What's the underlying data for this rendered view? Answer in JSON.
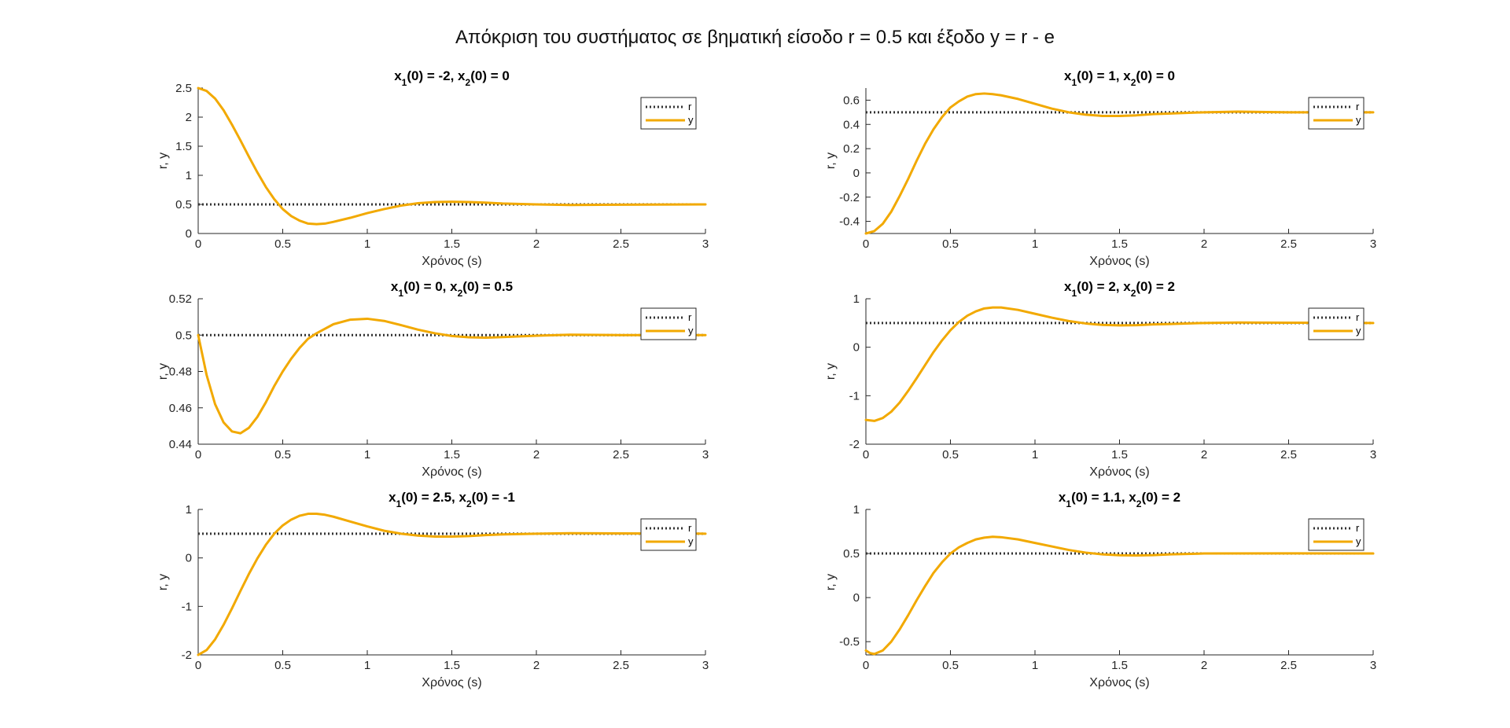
{
  "figure": {
    "title": "Απόκριση του συστήματος σε βηματική είσοδο r = 0.5 και έξοδο y = r - e"
  },
  "colors": {
    "r": "#333333",
    "y": "#F2A900",
    "axis": "#262626"
  },
  "chart_data": [
    {
      "type": "line",
      "title": "x1(0) = -2, x2(0) = 0",
      "title_parts": [
        [
          "x",
          "1",
          "(0) = -2, x"
        ],
        [
          "2",
          "(0) = 0"
        ]
      ],
      "xlabel": "Χρόνος (s)",
      "ylabel": "r, y",
      "xlim": [
        0,
        3
      ],
      "ylim": [
        0,
        2.5
      ],
      "xticks": [
        0,
        0.5,
        1,
        1.5,
        2,
        2.5,
        3
      ],
      "xtick_labels": [
        "0",
        "0.5",
        "1",
        "1.5",
        "2",
        "2.5",
        "3"
      ],
      "yticks": [
        0,
        0.5,
        1,
        1.5,
        2,
        2.5
      ],
      "ytick_labels": [
        "0",
        "0.5",
        "1",
        "1.5",
        "2",
        "2.5"
      ],
      "legend": [
        "r",
        "y"
      ],
      "legend_position": "top-right",
      "series": [
        {
          "name": "r",
          "x": [
            0,
            3
          ],
          "y": [
            0.5,
            0.5
          ],
          "style": "dotted"
        },
        {
          "name": "y",
          "style": "solid",
          "x": [
            0,
            0.05,
            0.1,
            0.15,
            0.2,
            0.25,
            0.3,
            0.35,
            0.4,
            0.45,
            0.5,
            0.55,
            0.6,
            0.65,
            0.7,
            0.75,
            0.8,
            0.9,
            1.0,
            1.1,
            1.2,
            1.3,
            1.4,
            1.5,
            1.6,
            1.7,
            1.8,
            2.0,
            2.2,
            2.5,
            3.0
          ],
          "y": [
            2.5,
            2.45,
            2.32,
            2.12,
            1.87,
            1.6,
            1.32,
            1.05,
            0.8,
            0.59,
            0.42,
            0.3,
            0.22,
            0.17,
            0.16,
            0.17,
            0.2,
            0.27,
            0.35,
            0.42,
            0.48,
            0.52,
            0.54,
            0.545,
            0.54,
            0.53,
            0.515,
            0.5,
            0.49,
            0.495,
            0.5
          ]
        }
      ]
    },
    {
      "type": "line",
      "title": "x1(0) = 1, x2(0) = 0",
      "title_parts": [
        [
          "x",
          "1",
          "(0) = 1, x"
        ],
        [
          "2",
          "(0) = 0"
        ]
      ],
      "xlabel": "Χρόνος (s)",
      "ylabel": "r, y",
      "xlim": [
        0,
        3
      ],
      "ylim": [
        -0.5,
        0.7
      ],
      "xticks": [
        0,
        0.5,
        1,
        1.5,
        2,
        2.5,
        3
      ],
      "xtick_labels": [
        "0",
        "0.5",
        "1",
        "1.5",
        "2",
        "2.5",
        "3"
      ],
      "yticks": [
        -0.4,
        -0.2,
        0,
        0.2,
        0.4,
        0.6
      ],
      "ytick_labels": [
        "-0.4",
        "-0.2",
        "0",
        "0.2",
        "0.4",
        "0.6"
      ],
      "legend": [
        "r",
        "y"
      ],
      "legend_position": "top-right",
      "series": [
        {
          "name": "r",
          "x": [
            0,
            3
          ],
          "y": [
            0.5,
            0.5
          ],
          "style": "dotted"
        },
        {
          "name": "y",
          "style": "solid",
          "x": [
            0,
            0.05,
            0.1,
            0.15,
            0.2,
            0.25,
            0.3,
            0.35,
            0.4,
            0.45,
            0.5,
            0.55,
            0.6,
            0.65,
            0.7,
            0.75,
            0.8,
            0.9,
            1.0,
            1.1,
            1.2,
            1.3,
            1.4,
            1.5,
            1.6,
            1.7,
            1.8,
            2.0,
            2.2,
            2.5,
            3.0
          ],
          "y": [
            -0.5,
            -0.48,
            -0.42,
            -0.32,
            -0.19,
            -0.05,
            0.1,
            0.24,
            0.36,
            0.46,
            0.54,
            0.59,
            0.63,
            0.65,
            0.655,
            0.65,
            0.64,
            0.61,
            0.57,
            0.53,
            0.5,
            0.48,
            0.47,
            0.47,
            0.475,
            0.485,
            0.49,
            0.5,
            0.505,
            0.5,
            0.5
          ]
        }
      ]
    },
    {
      "type": "line",
      "title": "x1(0) = 0, x2(0) = 0.5",
      "title_parts": [
        [
          "x",
          "1",
          "(0) = 0, x"
        ],
        [
          "2",
          "(0) = 0.5"
        ]
      ],
      "xlabel": "Χρόνος (s)",
      "ylabel": "r, y",
      "xlim": [
        0,
        3
      ],
      "ylim": [
        0.44,
        0.52
      ],
      "xticks": [
        0,
        0.5,
        1,
        1.5,
        2,
        2.5,
        3
      ],
      "xtick_labels": [
        "0",
        "0.5",
        "1",
        "1.5",
        "2",
        "2.5",
        "3"
      ],
      "yticks": [
        0.44,
        0.46,
        0.48,
        0.5,
        0.52
      ],
      "ytick_labels": [
        "0.44",
        "0.46",
        "0.48",
        "0.5",
        "0.52"
      ],
      "legend": [
        "r",
        "y"
      ],
      "legend_position": "top-right",
      "series": [
        {
          "name": "r",
          "x": [
            0,
            3
          ],
          "y": [
            0.5,
            0.5
          ],
          "style": "dotted"
        },
        {
          "name": "y",
          "style": "solid",
          "x": [
            0,
            0.025,
            0.05,
            0.1,
            0.15,
            0.2,
            0.25,
            0.3,
            0.35,
            0.4,
            0.45,
            0.5,
            0.55,
            0.6,
            0.65,
            0.7,
            0.8,
            0.9,
            1.0,
            1.1,
            1.2,
            1.3,
            1.4,
            1.5,
            1.6,
            1.7,
            1.8,
            2.0,
            2.2,
            2.5,
            3.0
          ],
          "y": [
            0.5,
            0.489,
            0.478,
            0.462,
            0.452,
            0.447,
            0.446,
            0.449,
            0.455,
            0.463,
            0.472,
            0.48,
            0.487,
            0.493,
            0.498,
            0.501,
            0.506,
            0.5085,
            0.509,
            0.5078,
            0.5055,
            0.503,
            0.501,
            0.4995,
            0.4988,
            0.4986,
            0.4989,
            0.4997,
            0.5002,
            0.5,
            0.5
          ]
        }
      ]
    },
    {
      "type": "line",
      "title": "x1(0) = 2, x2(0) = 2",
      "title_parts": [
        [
          "x",
          "1",
          "(0) = 2, x"
        ],
        [
          "2",
          "(0) = 2"
        ]
      ],
      "xlabel": "Χρόνος (s)",
      "ylabel": "r, y",
      "xlim": [
        0,
        3
      ],
      "ylim": [
        -2,
        1
      ],
      "xticks": [
        0,
        0.5,
        1,
        1.5,
        2,
        2.5,
        3
      ],
      "xtick_labels": [
        "0",
        "0.5",
        "1",
        "1.5",
        "2",
        "2.5",
        "3"
      ],
      "yticks": [
        -2,
        -1,
        0,
        1
      ],
      "ytick_labels": [
        "-2",
        "-1",
        "0",
        "1"
      ],
      "legend": [
        "r",
        "y"
      ],
      "legend_position": "top-right",
      "series": [
        {
          "name": "r",
          "x": [
            0,
            3
          ],
          "y": [
            0.5,
            0.5
          ],
          "style": "dotted"
        },
        {
          "name": "y",
          "style": "solid",
          "x": [
            0,
            0.05,
            0.1,
            0.15,
            0.2,
            0.25,
            0.3,
            0.35,
            0.4,
            0.45,
            0.5,
            0.55,
            0.6,
            0.65,
            0.7,
            0.75,
            0.8,
            0.9,
            1.0,
            1.1,
            1.2,
            1.3,
            1.4,
            1.5,
            1.6,
            1.7,
            1.8,
            2.0,
            2.2,
            2.5,
            3.0
          ],
          "y": [
            -1.5,
            -1.52,
            -1.46,
            -1.33,
            -1.14,
            -0.9,
            -0.64,
            -0.37,
            -0.1,
            0.14,
            0.35,
            0.52,
            0.65,
            0.74,
            0.8,
            0.82,
            0.82,
            0.77,
            0.69,
            0.61,
            0.54,
            0.49,
            0.46,
            0.45,
            0.455,
            0.47,
            0.48,
            0.5,
            0.51,
            0.505,
            0.5
          ]
        }
      ]
    },
    {
      "type": "line",
      "title": "x1(0) = 2.5, x2(0) = -1",
      "title_parts": [
        [
          "x",
          "1",
          "(0) = 2.5, x"
        ],
        [
          "2",
          "(0) = -1"
        ]
      ],
      "xlabel": "Χρόνος (s)",
      "ylabel": "r, y",
      "xlim": [
        0,
        3
      ],
      "ylim": [
        -2,
        1
      ],
      "xticks": [
        0,
        0.5,
        1,
        1.5,
        2,
        2.5,
        3
      ],
      "xtick_labels": [
        "0",
        "0.5",
        "1",
        "1.5",
        "2",
        "2.5",
        "3"
      ],
      "yticks": [
        -2,
        -1,
        0,
        1
      ],
      "ytick_labels": [
        "-2",
        "-1",
        "0",
        "1"
      ],
      "legend": [
        "r",
        "y"
      ],
      "legend_position": "top-right",
      "series": [
        {
          "name": "r",
          "x": [
            0,
            3
          ],
          "y": [
            0.5,
            0.5
          ],
          "style": "dotted"
        },
        {
          "name": "y",
          "style": "solid",
          "x": [
            0,
            0.05,
            0.1,
            0.15,
            0.2,
            0.25,
            0.3,
            0.35,
            0.4,
            0.45,
            0.5,
            0.55,
            0.6,
            0.65,
            0.7,
            0.75,
            0.8,
            0.9,
            1.0,
            1.1,
            1.2,
            1.3,
            1.4,
            1.5,
            1.6,
            1.7,
            1.8,
            2.0,
            2.2,
            2.5,
            3.0
          ],
          "y": [
            -2,
            -1.9,
            -1.68,
            -1.38,
            -1.04,
            -0.68,
            -0.33,
            -0.01,
            0.27,
            0.5,
            0.67,
            0.79,
            0.87,
            0.91,
            0.91,
            0.89,
            0.85,
            0.75,
            0.65,
            0.56,
            0.5,
            0.46,
            0.44,
            0.44,
            0.45,
            0.47,
            0.485,
            0.5,
            0.51,
            0.505,
            0.5
          ]
        }
      ]
    },
    {
      "type": "line",
      "title": "x1(0) = 1.1, x2(0) = 2",
      "title_parts": [
        [
          "x",
          "1",
          "(0) = 1.1, x"
        ],
        [
          "2",
          "(0) = 2"
        ]
      ],
      "xlabel": "Χρόνος (s)",
      "ylabel": "r, y",
      "xlim": [
        0,
        3
      ],
      "ylim": [
        -0.65,
        1
      ],
      "xticks": [
        0,
        0.5,
        1,
        1.5,
        2,
        2.5,
        3
      ],
      "xtick_labels": [
        "0",
        "0.5",
        "1",
        "1.5",
        "2",
        "2.5",
        "3"
      ],
      "yticks": [
        -0.5,
        0,
        0.5,
        1
      ],
      "ytick_labels": [
        "-0.5",
        "0",
        "0.5",
        "1"
      ],
      "legend": [
        "r",
        "y"
      ],
      "legend_position": "top-right",
      "series": [
        {
          "name": "r",
          "x": [
            0,
            3
          ],
          "y": [
            0.5,
            0.5
          ],
          "style": "dotted"
        },
        {
          "name": "y",
          "style": "solid",
          "x": [
            0,
            0.025,
            0.05,
            0.1,
            0.15,
            0.2,
            0.25,
            0.3,
            0.35,
            0.4,
            0.45,
            0.5,
            0.55,
            0.6,
            0.65,
            0.7,
            0.75,
            0.8,
            0.9,
            1.0,
            1.1,
            1.2,
            1.3,
            1.4,
            1.5,
            1.6,
            1.7,
            1.8,
            2.0,
            2.5,
            3.0
          ],
          "y": [
            -0.6,
            -0.63,
            -0.64,
            -0.6,
            -0.5,
            -0.36,
            -0.2,
            -0.03,
            0.13,
            0.28,
            0.4,
            0.5,
            0.57,
            0.62,
            0.66,
            0.68,
            0.69,
            0.685,
            0.66,
            0.62,
            0.58,
            0.54,
            0.51,
            0.49,
            0.48,
            0.478,
            0.482,
            0.49,
            0.5,
            0.502,
            0.5
          ]
        }
      ]
    }
  ]
}
